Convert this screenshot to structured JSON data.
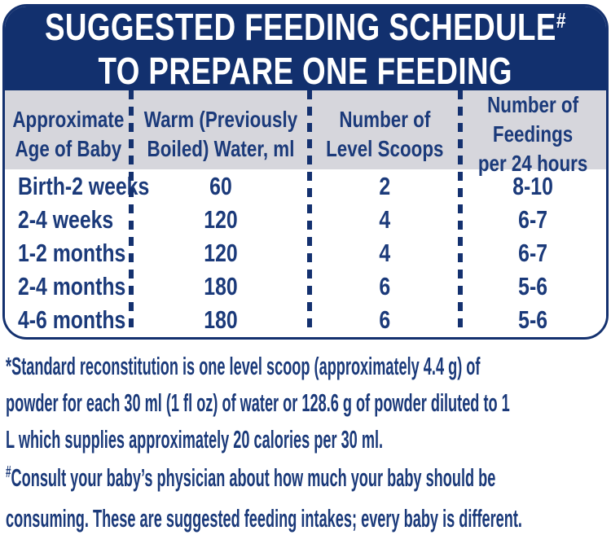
{
  "header": {
    "title_line1": "SUGGESTED FEEDING SCHEDULE",
    "title_superscript": "#",
    "title_line2": "TO PREPARE ONE FEEDING"
  },
  "table": {
    "columns": [
      "Approximate\nAge of Baby",
      "Warm (Previously\nBoiled) Water, ml",
      "Number of\nLevel Scoops",
      "Number of Feedings\nper 24 hours"
    ],
    "rows": [
      [
        "Birth-2 weeks",
        "60",
        "2",
        "8-10"
      ],
      [
        "2-4 weeks",
        "120",
        "4",
        "6-7"
      ],
      [
        "1-2 months",
        "120",
        "4",
        "6-7"
      ],
      [
        "2-4 months",
        "180",
        "6",
        "5-6"
      ],
      [
        "4-6 months",
        "180",
        "6",
        "5-6"
      ]
    ]
  },
  "footnotes": [
    {
      "marker": "*",
      "text": "Standard reconstitution is one level scoop (approximately 4.4 g) of\npowder for each 30 ml (1 fl oz) of water or 128.6 g of powder diluted to 1\nL which supplies approximately 20 calories per 30 ml."
    },
    {
      "marker": "#",
      "text": "Consult your baby’s physician about how much your baby should be\nconsuming. These are suggested feeding intakes; every baby is different."
    }
  ],
  "colors": {
    "navy_band": "#12306E",
    "border_navy": "#14316F",
    "text_navy": "#1B3A7A",
    "header_row_bg": "#D6D6DC",
    "background": "#FFFFFF"
  }
}
